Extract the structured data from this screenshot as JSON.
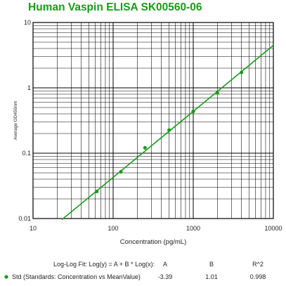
{
  "chart_data": {
    "type": "scatter",
    "title": "Human Vaspin ELISA SK00560-06",
    "xlabel": "Concentration (pg/mL)",
    "ylabel": "Average OD450nm",
    "xscale": "log",
    "yscale": "log",
    "xlim": [
      10,
      10000
    ],
    "ylim": [
      0.01,
      10
    ],
    "x_tick_labels": [
      "10",
      "100",
      "1000",
      "10000"
    ],
    "y_tick_labels": [
      "10",
      "1",
      "0.1",
      "0.01"
    ],
    "grid": true,
    "series": [
      {
        "name": "Std (Standards: Concentration vs MeanValue)",
        "x": [
          62.5,
          125,
          250,
          500,
          1000,
          2000,
          4000
        ],
        "y": [
          0.026,
          0.052,
          0.121,
          0.226,
          0.437,
          0.84,
          1.72
        ],
        "color": "#1a9a1a"
      }
    ],
    "fit": {
      "label": "Log-Log Fit: Log(y) = A + B * Log(x):",
      "headers": [
        "A",
        "B",
        "R^2"
      ],
      "values": [
        "-3.39",
        "1.01",
        "0.998"
      ],
      "A": -3.39,
      "B": 1.01,
      "x_range": [
        23,
        10000
      ]
    },
    "colors": {
      "series": "#1a9a1a",
      "grid": "#000000",
      "title": "#1a9a1a"
    }
  }
}
